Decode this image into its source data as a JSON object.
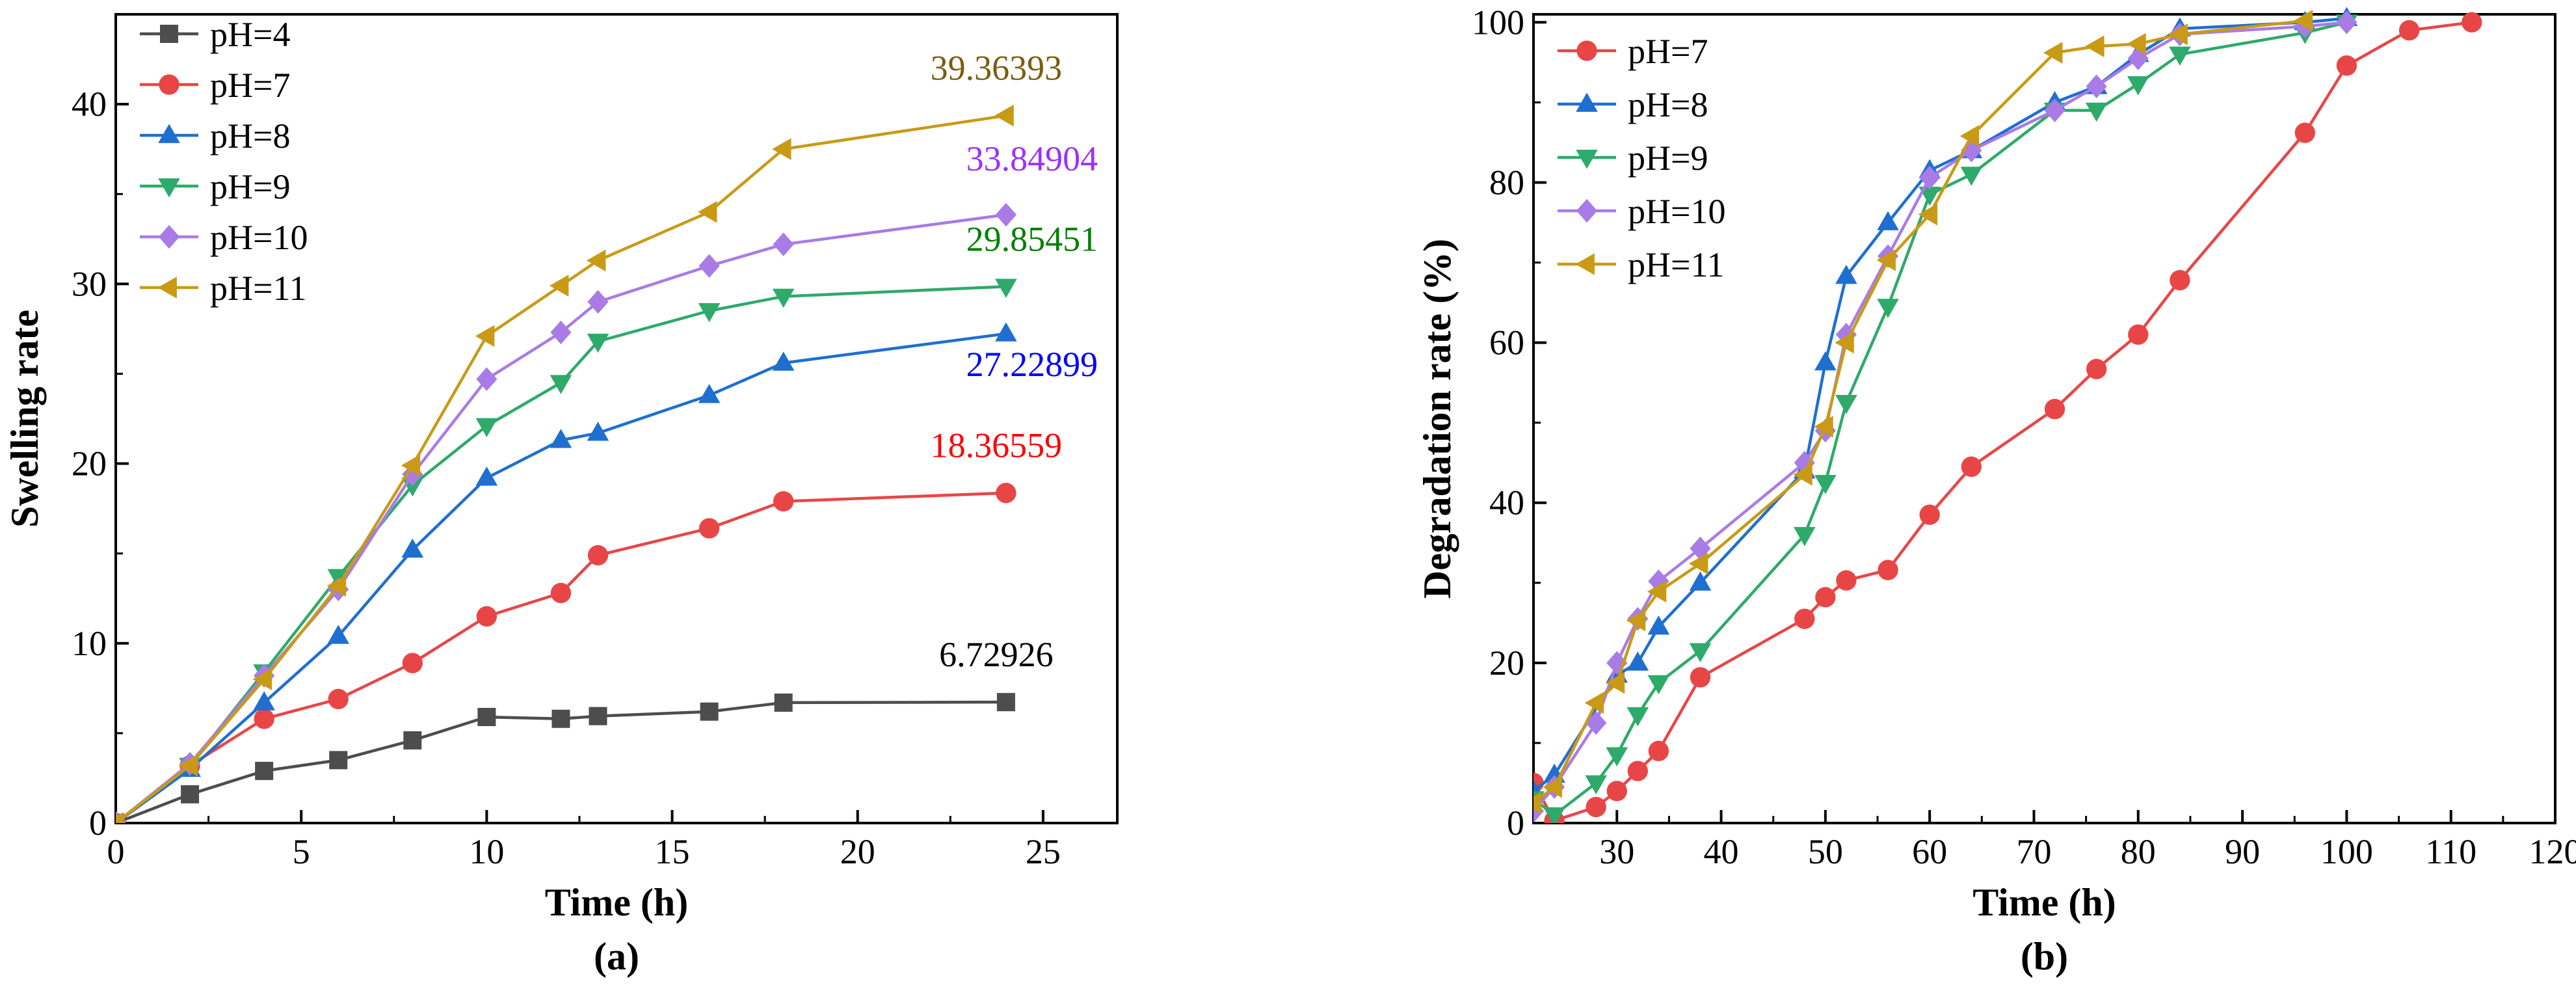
{
  "chart_data": [
    {
      "type": "line",
      "caption": "(a)",
      "xlabel": "Time (h)",
      "ylabel": "Swelling rate",
      "xlim": [
        0,
        27
      ],
      "ylim": [
        0,
        45
      ],
      "xticks": [
        0,
        5,
        10,
        15,
        20,
        25
      ],
      "yticks": [
        0,
        10,
        20,
        30,
        40
      ],
      "grid": false,
      "legend_position": "top-left",
      "series": [
        {
          "name": "pH=4",
          "color": "#4d4d4d",
          "marker": "square",
          "x": [
            0,
            2,
            4,
            6,
            8,
            10,
            12,
            13,
            16,
            18,
            24
          ],
          "y": [
            0,
            1.6,
            2.9,
            3.5,
            4.6,
            5.9,
            5.8,
            5.95,
            6.2,
            6.7,
            6.72926
          ],
          "end_label": "6.72926",
          "end_label_color": "#000000"
        },
        {
          "name": "pH=7",
          "color": "#e84646",
          "marker": "circle",
          "x": [
            0,
            2,
            4,
            6,
            8,
            10,
            12,
            13,
            16,
            18,
            24
          ],
          "y": [
            0,
            3.2,
            5.8,
            6.9,
            8.9,
            11.5,
            12.8,
            14.9,
            16.4,
            17.9,
            18.36559
          ],
          "end_label": "18.36559",
          "end_label_color": "#ff0000"
        },
        {
          "name": "pH=8",
          "color": "#1f6fd0",
          "marker": "triangle-up",
          "x": [
            0,
            2,
            4,
            6,
            8,
            10,
            12,
            13,
            16,
            18,
            24
          ],
          "y": [
            0,
            3.0,
            6.7,
            10.4,
            15.2,
            19.2,
            21.3,
            21.7,
            23.8,
            25.6,
            27.22899
          ],
          "end_label": "27.22899",
          "end_label_color": "#0000ff"
        },
        {
          "name": "pH=9",
          "color": "#2eaa6a",
          "marker": "triangle-down",
          "x": [
            0,
            2,
            4,
            6,
            8,
            10,
            12,
            13,
            16,
            18,
            24
          ],
          "y": [
            0,
            3.2,
            8.4,
            13.7,
            18.8,
            22.1,
            24.5,
            26.8,
            28.5,
            29.3,
            29.85451
          ],
          "end_label": "29.85451",
          "end_label_color": "#008000"
        },
        {
          "name": "pH=10",
          "color": "#a97be6",
          "marker": "diamond",
          "x": [
            0,
            2,
            4,
            6,
            8,
            10,
            12,
            13,
            16,
            18,
            24
          ],
          "y": [
            0,
            3.3,
            8.2,
            13.0,
            19.4,
            24.7,
            27.3,
            29.0,
            31.0,
            32.2,
            33.84904
          ],
          "end_label": "33.84904",
          "end_label_color": "#9b30ff"
        },
        {
          "name": "pH=11",
          "color": "#c99a16",
          "marker": "triangle-left",
          "x": [
            0,
            2,
            4,
            6,
            8,
            10,
            12,
            13,
            16,
            18,
            24
          ],
          "y": [
            0,
            3.2,
            8.0,
            13.2,
            19.9,
            27.1,
            29.9,
            31.3,
            34.0,
            37.5,
            39.36393
          ],
          "end_label": "39.36393",
          "end_label_color": "#7a5c10"
        }
      ]
    },
    {
      "type": "line",
      "caption": "(b)",
      "xlabel": "Time (h)",
      "ylabel": "Degradation rate (%)",
      "xlim": [
        22,
        120
      ],
      "ylim": [
        0,
        101
      ],
      "xticks": [
        30,
        40,
        50,
        60,
        70,
        80,
        90,
        100,
        110,
        120
      ],
      "yticks": [
        0,
        20,
        40,
        60,
        80,
        100
      ],
      "grid": false,
      "legend_position": "top-left",
      "series": [
        {
          "name": "pH=7",
          "color": "#e84646",
          "marker": "circle",
          "x": [
            22,
            24,
            28,
            30,
            32,
            34,
            38,
            48,
            50,
            52,
            56,
            60,
            64,
            72,
            76,
            80,
            84,
            96,
            100,
            106,
            112
          ],
          "y": [
            5,
            0.3,
            2,
            4,
            6.5,
            9,
            18.2,
            25.5,
            28.2,
            30.3,
            31.6,
            38.5,
            44.5,
            51.7,
            56.7,
            61,
            67.8,
            86.2,
            94.6,
            99,
            100
          ]
        },
        {
          "name": "pH=8",
          "color": "#1f6fd0",
          "marker": "triangle-up",
          "x": [
            22,
            24,
            30,
            32,
            34,
            38,
            48,
            50,
            52,
            56,
            60,
            64,
            72,
            76,
            80,
            84,
            96,
            100
          ],
          "y": [
            4,
            6,
            18.5,
            20,
            24.5,
            30,
            44,
            57.5,
            68.3,
            75,
            81.5,
            84,
            90,
            92,
            96,
            99.2,
            100,
            100.5
          ]
        },
        {
          "name": "pH=9",
          "color": "#2eaa6a",
          "marker": "triangle-down",
          "x": [
            22,
            24,
            28,
            30,
            32,
            34,
            38,
            48,
            50,
            52,
            56,
            60,
            64,
            72,
            76,
            80,
            84,
            96,
            100
          ],
          "y": [
            3,
            1,
            5,
            8.5,
            13.5,
            17.5,
            21.5,
            36,
            42.5,
            52.5,
            64.5,
            78.5,
            81,
            89,
            89,
            92.3,
            96,
            98.7,
            100
          ]
        },
        {
          "name": "pH=10",
          "color": "#a97be6",
          "marker": "diamond",
          "x": [
            22,
            24,
            28,
            30,
            32,
            34,
            38,
            48,
            50,
            52,
            56,
            60,
            64,
            72,
            76,
            80,
            84,
            96,
            100
          ],
          "y": [
            1.5,
            4.5,
            12.5,
            20,
            25.5,
            30.2,
            34.3,
            45,
            49,
            61,
            70.8,
            80.6,
            84,
            89,
            92,
            95.5,
            98.5,
            99.5,
            100
          ]
        },
        {
          "name": "pH=11",
          "color": "#c99a16",
          "marker": "triangle-left",
          "x": [
            22,
            24,
            28,
            30,
            32,
            34,
            38,
            48,
            50,
            52,
            56,
            60,
            64,
            72,
            76,
            80,
            84,
            96
          ],
          "y": [
            2.5,
            4.5,
            15,
            17.5,
            25.3,
            28.9,
            32.4,
            43.5,
            49.5,
            60,
            70.3,
            76,
            85.8,
            96.2,
            97,
            97.3,
            98.5,
            100.2
          ]
        }
      ]
    }
  ]
}
